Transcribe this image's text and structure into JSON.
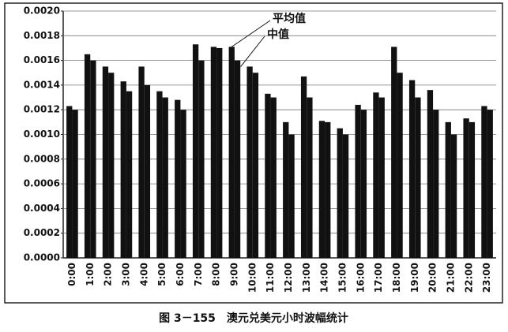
{
  "chart_data": {
    "type": "bar",
    "caption": "图 3－155　澳元兑美元小时波幅统计",
    "categories": [
      "0:00",
      "1:00",
      "2:00",
      "3:00",
      "4:00",
      "5:00",
      "6:00",
      "7:00",
      "8:00",
      "9:00",
      "10:00",
      "11:00",
      "12:00",
      "13:00",
      "14:00",
      "15:00",
      "16:00",
      "17:00",
      "18:00",
      "19:00",
      "20:00",
      "21:00",
      "22:00",
      "23:00"
    ],
    "series": [
      {
        "name": "平均值",
        "color": "#111111",
        "values": [
          0.00123,
          0.00165,
          0.00155,
          0.00143,
          0.00155,
          0.00135,
          0.00128,
          0.00173,
          0.00171,
          0.00171,
          0.00155,
          0.00133,
          0.0011,
          0.00147,
          0.00111,
          0.00105,
          0.00124,
          0.00134,
          0.00171,
          0.00144,
          0.00136,
          0.0011,
          0.00113,
          0.00123
        ]
      },
      {
        "name": "中值",
        "color": "#111111",
        "values": [
          0.0012,
          0.0016,
          0.0015,
          0.00135,
          0.0014,
          0.0013,
          0.0012,
          0.0016,
          0.0017,
          0.0016,
          0.0015,
          0.0013,
          0.001,
          0.0013,
          0.0011,
          0.001,
          0.0012,
          0.0013,
          0.0015,
          0.0013,
          0.0012,
          0.001,
          0.0011,
          0.0012
        ]
      }
    ],
    "ylim": [
      0,
      0.002
    ],
    "yticks": [
      {
        "value": 0,
        "label": "0.0000"
      },
      {
        "value": 0.0002,
        "label": "0.0002"
      },
      {
        "value": 0.0004,
        "label": "0.0004"
      },
      {
        "value": 0.0006,
        "label": "0.0006"
      },
      {
        "value": 0.0008,
        "label": "0.0008"
      },
      {
        "value": 0.001,
        "label": "0.0010"
      },
      {
        "value": 0.0012,
        "label": "0.0012"
      },
      {
        "value": 0.0014,
        "label": "0.0014"
      },
      {
        "value": 0.0016,
        "label": "0.0016"
      },
      {
        "value": 0.0018,
        "label": "0.0018"
      },
      {
        "value": 0.002,
        "label": "0.0020"
      }
    ],
    "grid": true
  }
}
